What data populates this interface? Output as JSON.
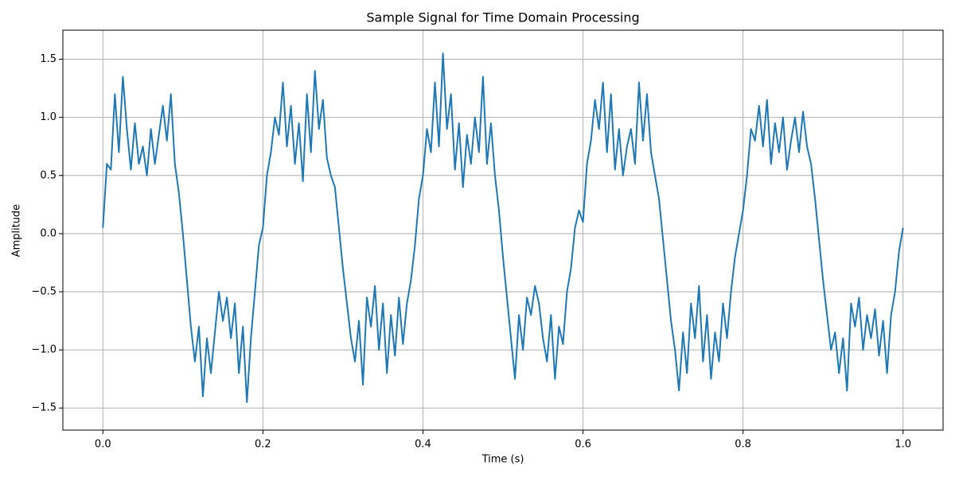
{
  "chart_data": {
    "type": "line",
    "title": "Sample Signal for Time Domain Processing",
    "x_label": "Time (s)",
    "y_label": "Amplitude",
    "x": [
      0,
      0.005,
      0.01,
      0.015,
      0.02,
      0.025,
      0.03,
      0.035,
      0.04,
      0.045,
      0.05,
      0.055,
      0.06,
      0.065,
      0.07,
      0.075,
      0.08,
      0.085,
      0.09,
      0.095,
      0.1,
      0.105,
      0.11,
      0.115,
      0.12,
      0.125,
      0.13,
      0.135,
      0.14,
      0.145,
      0.15,
      0.155,
      0.16,
      0.165,
      0.17,
      0.175,
      0.18,
      0.185,
      0.19,
      0.195,
      0.2,
      0.205,
      0.21,
      0.215,
      0.22,
      0.225,
      0.23,
      0.235,
      0.24,
      0.245,
      0.25,
      0.255,
      0.26,
      0.265,
      0.27,
      0.275,
      0.28,
      0.285,
      0.29,
      0.295,
      0.3,
      0.305,
      0.31,
      0.315,
      0.32,
      0.325,
      0.33,
      0.335,
      0.34,
      0.345,
      0.35,
      0.355,
      0.36,
      0.365,
      0.37,
      0.375,
      0.38,
      0.385,
      0.39,
      0.395,
      0.4,
      0.405,
      0.41,
      0.415,
      0.42,
      0.425,
      0.43,
      0.435,
      0.44,
      0.445,
      0.45,
      0.455,
      0.46,
      0.465,
      0.47,
      0.475,
      0.48,
      0.485,
      0.49,
      0.495,
      0.5,
      0.505,
      0.51,
      0.515,
      0.52,
      0.525,
      0.53,
      0.535,
      0.54,
      0.545,
      0.55,
      0.555,
      0.56,
      0.565,
      0.57,
      0.575,
      0.58,
      0.585,
      0.59,
      0.595,
      0.6,
      0.605,
      0.61,
      0.615,
      0.62,
      0.625,
      0.63,
      0.635,
      0.64,
      0.645,
      0.65,
      0.655,
      0.66,
      0.665,
      0.67,
      0.675,
      0.68,
      0.685,
      0.69,
      0.695,
      0.7,
      0.705,
      0.71,
      0.715,
      0.72,
      0.725,
      0.73,
      0.735,
      0.74,
      0.745,
      0.75,
      0.755,
      0.76,
      0.765,
      0.77,
      0.775,
      0.78,
      0.785,
      0.79,
      0.795,
      0.8,
      0.805,
      0.81,
      0.815,
      0.82,
      0.825,
      0.83,
      0.835,
      0.84,
      0.845,
      0.85,
      0.855,
      0.86,
      0.865,
      0.87,
      0.875,
      0.88,
      0.885,
      0.89,
      0.895,
      0.9,
      0.905,
      0.91,
      0.915,
      0.92,
      0.925,
      0.93,
      0.935,
      0.94,
      0.945,
      0.95,
      0.955,
      0.96,
      0.965,
      0.97,
      0.975,
      0.98,
      0.985,
      0.99,
      0.995,
      1.0
    ],
    "series": [
      {
        "color": "#1f77b4",
        "values": [
          0.05,
          0.6,
          0.55,
          1.2,
          0.7,
          1.35,
          0.9,
          0.55,
          0.95,
          0.6,
          0.75,
          0.5,
          0.9,
          0.6,
          0.85,
          1.1,
          0.8,
          1.2,
          0.6,
          0.35,
          0.0,
          -0.4,
          -0.8,
          -1.1,
          -0.8,
          -1.4,
          -0.9,
          -1.2,
          -0.85,
          -0.5,
          -0.75,
          -0.55,
          -0.9,
          -0.6,
          -1.2,
          -0.8,
          -1.45,
          -0.9,
          -0.5,
          -0.1,
          0.05,
          0.5,
          0.7,
          1.0,
          0.85,
          1.3,
          0.75,
          1.1,
          0.6,
          0.95,
          0.45,
          1.2,
          0.7,
          1.4,
          0.9,
          1.15,
          0.65,
          0.5,
          0.4,
          0.05,
          -0.3,
          -0.6,
          -0.9,
          -1.1,
          -0.75,
          -1.3,
          -0.55,
          -0.8,
          -0.45,
          -1.0,
          -0.6,
          -1.2,
          -0.7,
          -1.05,
          -0.55,
          -0.95,
          -0.6,
          -0.4,
          -0.1,
          0.3,
          0.5,
          0.9,
          0.7,
          1.3,
          0.75,
          1.55,
          0.9,
          1.2,
          0.55,
          0.95,
          0.4,
          0.85,
          0.6,
          1.0,
          0.7,
          1.35,
          0.6,
          0.95,
          0.5,
          0.2,
          -0.2,
          -0.55,
          -0.9,
          -1.25,
          -0.7,
          -1.0,
          -0.55,
          -0.7,
          -0.45,
          -0.6,
          -0.9,
          -1.1,
          -0.7,
          -1.25,
          -0.8,
          -0.95,
          -0.5,
          -0.3,
          0.05,
          0.2,
          0.1,
          0.6,
          0.8,
          1.15,
          0.9,
          1.3,
          0.7,
          1.2,
          0.55,
          0.9,
          0.5,
          0.75,
          0.9,
          0.6,
          1.3,
          0.8,
          1.2,
          0.7,
          0.5,
          0.3,
          -0.05,
          -0.4,
          -0.75,
          -1.0,
          -1.35,
          -0.85,
          -1.2,
          -0.6,
          -0.9,
          -0.45,
          -1.1,
          -0.7,
          -1.25,
          -0.85,
          -1.1,
          -0.6,
          -0.9,
          -0.5,
          -0.2,
          0.0,
          0.2,
          0.5,
          0.9,
          0.8,
          1.1,
          0.75,
          1.15,
          0.6,
          0.95,
          0.7,
          1.0,
          0.55,
          0.8,
          1.0,
          0.7,
          1.05,
          0.75,
          0.6,
          0.3,
          -0.05,
          -0.4,
          -0.7,
          -1.0,
          -0.85,
          -1.2,
          -0.9,
          -1.35,
          -0.6,
          -0.8,
          -0.55,
          -1.0,
          -0.7,
          -0.9,
          -0.65,
          -1.05,
          -0.75,
          -1.2,
          -0.7,
          -0.5,
          -0.15,
          0.05
        ]
      }
    ],
    "xlim": [
      -0.05,
      1.05
    ],
    "ylim": [
      -1.69,
      1.75
    ],
    "xticks": [
      {
        "value": 0,
        "label": "0.0"
      },
      0.2,
      0.4,
      0.6,
      0.8,
      {
        "value": 1,
        "label": "1.0"
      }
    ],
    "yticks": [
      {
        "value": -1.5,
        "label": "−1.5"
      },
      {
        "value": -1,
        "label": "−1.0"
      },
      {
        "value": -0.5,
        "label": "−0.5"
      },
      {
        "value": 0,
        "label": "0.0"
      },
      0.5,
      {
        "value": 1,
        "label": "1.0"
      },
      1.5
    ],
    "grid": true
  }
}
